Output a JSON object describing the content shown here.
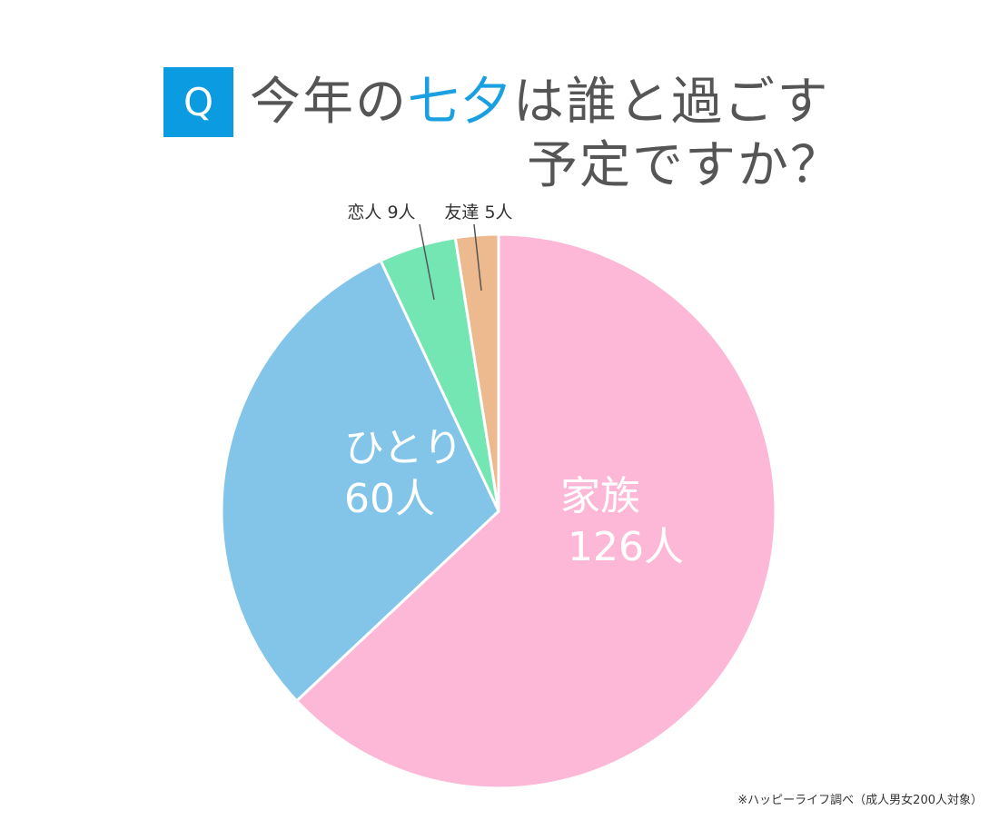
{
  "title": {
    "badge": "Q",
    "line1_pre": "今年の",
    "line1_highlight": "七夕",
    "line1_post": "は誰と過ごす",
    "line2": "予定ですか？"
  },
  "chart_data": {
    "type": "pie",
    "unit": "人",
    "slices": [
      {
        "label": "家族",
        "value": 126,
        "value_text": "126人",
        "color": "#fdb8d7",
        "label_placement": "inside",
        "label_color": "#ffffff"
      },
      {
        "label": "ひとり",
        "value": 60,
        "value_text": "60人",
        "color": "#82c5e8",
        "label_placement": "inside",
        "label_color": "#ffffff"
      },
      {
        "label": "恋人",
        "value": 9,
        "value_text": "9人",
        "color": "#74e6b4",
        "label_placement": "outside",
        "label_color": "#333333"
      },
      {
        "label": "友達",
        "value": 5,
        "value_text": "5人",
        "color": "#edb98e",
        "label_placement": "outside",
        "label_color": "#333333"
      }
    ]
  },
  "footnote": "※ハッピーライフ調べ（成人男女200人対象）"
}
